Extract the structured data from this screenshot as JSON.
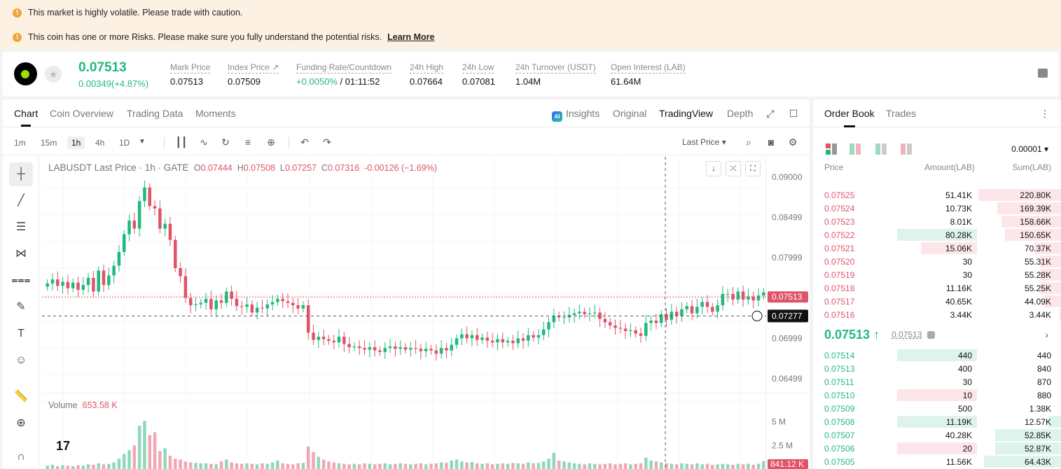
{
  "banners": {
    "volatility": "This market is highly volatile. Please trade with caution.",
    "risk": "This coin has one or more Risks. Please make sure you fully understand the potential risks.",
    "learn_more": "Learn More"
  },
  "ticker": {
    "last_price": "0.07513",
    "change": "0.00349(+4.87%)",
    "stats": [
      {
        "label": "Mark Price",
        "value": "0.07513"
      },
      {
        "label": "Index Price ↗",
        "value": "0.07509"
      },
      {
        "label": "Funding Rate/Countdown",
        "value_green": "+0.0050%",
        "value_rest": " / 01:11:52"
      },
      {
        "label": "24h High",
        "value": "0.07664"
      },
      {
        "label": "24h Low",
        "value": "0.07081"
      },
      {
        "label": "24h Turnover (USDT)",
        "value": "1.04M"
      },
      {
        "label": "Open Interest (LAB)",
        "value": "61.64M"
      }
    ]
  },
  "chart_tabs": [
    "Chart",
    "Coin Overview",
    "Trading Data",
    "Moments"
  ],
  "view_options": {
    "insights": "Insights",
    "ai_badge": "AI",
    "original": "Original",
    "tradingview": "TradingView",
    "depth": "Depth"
  },
  "timeframes": [
    "1m",
    "15m",
    "1h",
    "4h",
    "1D"
  ],
  "toolbar": {
    "last_price_select": "Last Price"
  },
  "chart_legend": {
    "symbol": "LABUSDT Last Price · 1h · GATE",
    "o_label": "O",
    "o": "0.07444",
    "h_label": "H",
    "h": "0.07508",
    "l_label": "L",
    "l": "0.07257",
    "c_label": "C",
    "c": "0.07316",
    "chg": "-0.00126 (−1.69%)"
  },
  "volume_legend": {
    "label": "Volume",
    "value": "653.58 K"
  },
  "chart_data": {
    "type": "candlestick",
    "y_ticks": [
      "0.09000",
      "0.08499",
      "0.07999",
      "0.07513",
      "0.07277",
      "0.06999",
      "0.06499"
    ],
    "price_label": "0.07513",
    "crosshair_label": "0.07277",
    "volume_ticks": [
      "5 M",
      "2.5 M"
    ],
    "volume_label": "841.12 K",
    "closes": [
      0.0768,
      0.0773,
      0.0765,
      0.077,
      0.0762,
      0.0769,
      0.076,
      0.0766,
      0.0775,
      0.0758,
      0.0784,
      0.0766,
      0.0778,
      0.079,
      0.0807,
      0.0829,
      0.0846,
      0.0836,
      0.087,
      0.0887,
      0.0864,
      0.0861,
      0.0836,
      0.0842,
      0.0822,
      0.0787,
      0.0777,
      0.075,
      0.0741,
      0.0742,
      0.0744,
      0.0749,
      0.0736,
      0.0747,
      0.0744,
      0.0758,
      0.0749,
      0.074,
      0.0739,
      0.0742,
      0.0732,
      0.0738,
      0.0737,
      0.0742,
      0.0745,
      0.0749,
      0.0746,
      0.0744,
      0.0741,
      0.0737,
      0.0741,
      0.0707,
      0.0698,
      0.0702,
      0.0699,
      0.0697,
      0.0695,
      0.0702,
      0.0693,
      0.0689,
      0.069,
      0.0688,
      0.0686,
      0.0689,
      0.0685,
      0.0683,
      0.0688,
      0.069,
      0.0687,
      0.0689,
      0.0686,
      0.0688,
      0.0687,
      0.0684,
      0.0687,
      0.0685,
      0.0681,
      0.0688,
      0.0685,
      0.0692,
      0.07,
      0.0705,
      0.07,
      0.0704,
      0.0698,
      0.0701,
      0.0697,
      0.0695,
      0.0699,
      0.0695,
      0.0697,
      0.0694,
      0.07,
      0.0697,
      0.0704,
      0.0701,
      0.0704,
      0.0711,
      0.072,
      0.0728,
      0.0726,
      0.0726,
      0.0729,
      0.0731,
      0.0733,
      0.073,
      0.0731,
      0.0732,
      0.0724,
      0.072,
      0.0716,
      0.0713,
      0.0712,
      0.0709,
      0.071,
      0.0706,
      0.0703,
      0.0719,
      0.0722,
      0.0719,
      0.073,
      0.0723,
      0.0733,
      0.0728,
      0.0736,
      0.074,
      0.0731,
      0.0739,
      0.0745,
      0.0739,
      0.0733,
      0.0741,
      0.0755,
      0.0755,
      0.0748,
      0.0758,
      0.0748,
      0.0752,
      0.0747,
      0.0753,
      0.0757
    ],
    "volumes": [
      0.35,
      0.45,
      0.3,
      0.4,
      0.35,
      0.3,
      0.4,
      0.35,
      0.5,
      0.45,
      0.6,
      0.5,
      0.55,
      0.7,
      1.1,
      1.6,
      2.0,
      2.5,
      4.6,
      5.1,
      3.6,
      3.9,
      1.9,
      2.2,
      1.4,
      1.1,
      1.0,
      0.8,
      0.7,
      0.65,
      0.6,
      0.6,
      0.55,
      0.5,
      0.8,
      1.0,
      0.7,
      0.6,
      0.55,
      0.6,
      0.55,
      0.5,
      0.6,
      0.55,
      0.7,
      0.9,
      0.6,
      0.55,
      0.5,
      0.6,
      0.65,
      2.4,
      1.8,
      1.3,
      1.0,
      0.8,
      0.7,
      0.6,
      0.55,
      0.5,
      0.55,
      0.5,
      0.6,
      0.55,
      0.5,
      0.55,
      0.6,
      0.5,
      0.55,
      0.6,
      0.55,
      0.5,
      0.55,
      0.6,
      0.5,
      0.55,
      0.6,
      0.7,
      0.65,
      0.9,
      1.0,
      0.8,
      0.7,
      0.75,
      0.6,
      0.55,
      0.6,
      0.5,
      0.55,
      0.6,
      0.55,
      0.65,
      0.6,
      0.55,
      0.7,
      0.6,
      0.65,
      0.8,
      1.1,
      1.7,
      0.9,
      0.8,
      0.7,
      0.6,
      0.55,
      0.5,
      0.6,
      0.55,
      0.5,
      0.55,
      0.6,
      0.5,
      0.55,
      0.6,
      0.5,
      0.55,
      0.6,
      1.2,
      0.9,
      0.8,
      0.7,
      0.6,
      0.55,
      0.5,
      0.6,
      0.55,
      0.5,
      0.6,
      0.5,
      0.55,
      0.45,
      0.5,
      0.55,
      0.5,
      0.45,
      0.55,
      0.5,
      0.55,
      0.45,
      0.55,
      0.84
    ]
  },
  "orderbook": {
    "tabs": [
      "Order Book",
      "Trades"
    ],
    "precision": "0.00001",
    "headers": {
      "price": "Price",
      "amount": "Amount(LAB)",
      "sum": "Sum(LAB)"
    },
    "asks": [
      {
        "price": "0.07525",
        "amount": "51.41K",
        "sum": "220.80K",
        "sum_pct": 1.0,
        "amt": "none"
      },
      {
        "price": "0.07524",
        "amount": "10.73K",
        "sum": "169.39K",
        "sum_pct": 0.77,
        "amt": "none"
      },
      {
        "price": "0.07523",
        "amount": "8.01K",
        "sum": "158.66K",
        "sum_pct": 0.72,
        "amt": "none"
      },
      {
        "price": "0.07522",
        "amount": "80.28K",
        "sum": "150.65K",
        "sum_pct": 0.68,
        "amt": "green",
        "amt_pct": 1.0
      },
      {
        "price": "0.07521",
        "amount": "15.06K",
        "sum": "70.37K",
        "sum_pct": 0.32,
        "amt": "red",
        "amt_pct": 0.7
      },
      {
        "price": "0.07520",
        "amount": "30",
        "sum": "55.31K",
        "sum_pct": 0.25,
        "amt": "none"
      },
      {
        "price": "0.07519",
        "amount": "30",
        "sum": "55.28K",
        "sum_pct": 0.25,
        "amt": "none"
      },
      {
        "price": "0.07518",
        "amount": "11.16K",
        "sum": "55.25K",
        "sum_pct": 0.25,
        "amt": "none"
      },
      {
        "price": "0.07517",
        "amount": "40.65K",
        "sum": "44.09K",
        "sum_pct": 0.2,
        "amt": "none"
      },
      {
        "price": "0.07516",
        "amount": "3.44K",
        "sum": "3.44K",
        "sum_pct": 0.02,
        "amt": "none"
      }
    ],
    "mid_price": "0.07513 ↑",
    "mid_mark": "0.07513",
    "bids": [
      {
        "price": "0.07514",
        "amount": "440",
        "sum": "440",
        "sum_pct": 0.0,
        "amt": "green",
        "amt_pct": 1.0
      },
      {
        "price": "0.07513",
        "amount": "400",
        "sum": "840",
        "sum_pct": 0.0,
        "amt": "none"
      },
      {
        "price": "0.07511",
        "amount": "30",
        "sum": "870",
        "sum_pct": 0.0,
        "amt": "none"
      },
      {
        "price": "0.07510",
        "amount": "10",
        "sum": "880",
        "sum_pct": 0.0,
        "amt": "red",
        "amt_pct": 1.0
      },
      {
        "price": "0.07509",
        "amount": "500",
        "sum": "1.38K",
        "sum_pct": 0.0,
        "amt": "none"
      },
      {
        "price": "0.07508",
        "amount": "11.19K",
        "sum": "12.57K",
        "sum_pct": 0.15,
        "amt": "green",
        "amt_pct": 1.0
      },
      {
        "price": "0.07507",
        "amount": "40.28K",
        "sum": "52.85K",
        "sum_pct": 0.8,
        "amt": "none"
      },
      {
        "price": "0.07506",
        "amount": "20",
        "sum": "52.87K",
        "sum_pct": 0.8,
        "amt": "red",
        "amt_pct": 1.0
      },
      {
        "price": "0.07505",
        "amount": "11.56K",
        "sum": "64.43K",
        "sum_pct": 0.93,
        "amt": "none"
      }
    ]
  },
  "colors": {
    "up": "#21b97f",
    "down": "#e05469",
    "warning": "#f2a33a"
  }
}
